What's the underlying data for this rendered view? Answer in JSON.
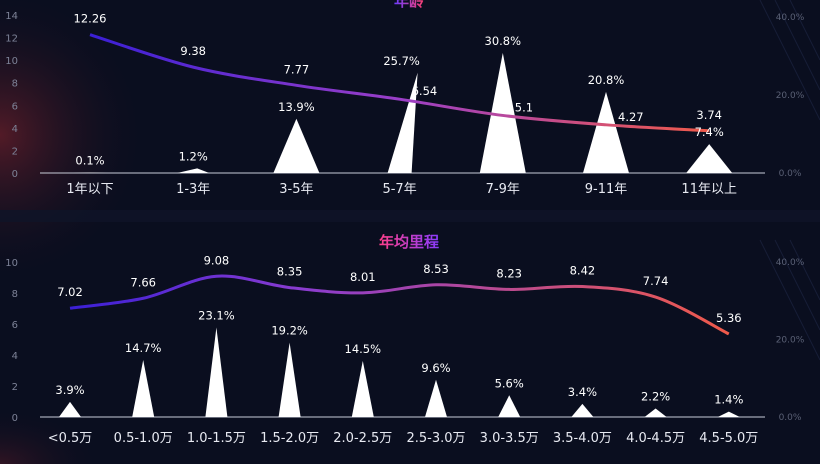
{
  "colors": {
    "background": "#0a0e1f",
    "line_start": "#3b1fd6",
    "line_mid": "#9b3fc8",
    "line_end": "#f05a4a",
    "spike": "#ffffff",
    "title_gradient": [
      "#6a3cff",
      "#ff3f6a"
    ]
  },
  "chart_data": [
    {
      "type": "bar",
      "title": "年龄",
      "categories": [
        "1年以下",
        "1-3年",
        "3-5年",
        "5-7年",
        "7-9年",
        "9-11年",
        "11年以上"
      ],
      "series": [
        {
          "kind": "spike",
          "axis": "right",
          "values": [
            0.1,
            1.2,
            13.9,
            25.7,
            30.8,
            20.8,
            7.4
          ],
          "labels": [
            "0.1%",
            "1.2%",
            "13.9%",
            "25.7%",
            "30.8%",
            "20.8%",
            "7.4%"
          ]
        },
        {
          "kind": "line",
          "axis": "left",
          "values": [
            12.26,
            9.38,
            7.77,
            6.54,
            5.1,
            4.27,
            3.74
          ],
          "labels": [
            "12.26",
            "9.38",
            "7.77",
            "6.54",
            "5.1",
            "4.27",
            "3.74"
          ]
        }
      ],
      "ylim_left": [
        0,
        14
      ],
      "yticks_left": [
        "0",
        "2",
        "4",
        "6",
        "8",
        "10",
        "12",
        "14"
      ],
      "ylim_right": [
        0,
        40
      ],
      "yticks_right": [
        "0.0%",
        "20.0%",
        "40.0%"
      ]
    },
    {
      "type": "bar",
      "title": "年均里程",
      "categories": [
        "<0.5万",
        "0.5-1.0万",
        "1.0-1.5万",
        "1.5-2.0万",
        "2.0-2.5万",
        "2.5-3.0万",
        "3.0-3.5万",
        "3.5-4.0万",
        "4.0-4.5万",
        "4.5-5.0万"
      ],
      "series": [
        {
          "kind": "spike",
          "axis": "right",
          "values": [
            3.9,
            14.7,
            23.1,
            19.2,
            14.5,
            9.6,
            5.6,
            3.4,
            2.2,
            1.4
          ],
          "labels": [
            "3.9%",
            "14.7%",
            "23.1%",
            "19.2%",
            "14.5%",
            "9.6%",
            "5.6%",
            "3.4%",
            "2.2%",
            "1.4%"
          ]
        },
        {
          "kind": "line",
          "axis": "left",
          "values": [
            7.02,
            7.66,
            9.08,
            8.35,
            8.01,
            8.53,
            8.23,
            8.42,
            7.74,
            5.36
          ],
          "labels": [
            "7.02",
            "7.66",
            "9.08",
            "8.35",
            "8.01",
            "8.53",
            "8.23",
            "8.42",
            "7.74",
            "5.36"
          ]
        }
      ],
      "ylim_left": [
        0,
        10
      ],
      "yticks_left": [
        "0",
        "2",
        "4",
        "6",
        "8",
        "10"
      ],
      "ylim_right": [
        0,
        40
      ],
      "yticks_right": [
        "0.0%",
        "20.0%",
        "40.0%"
      ]
    }
  ]
}
